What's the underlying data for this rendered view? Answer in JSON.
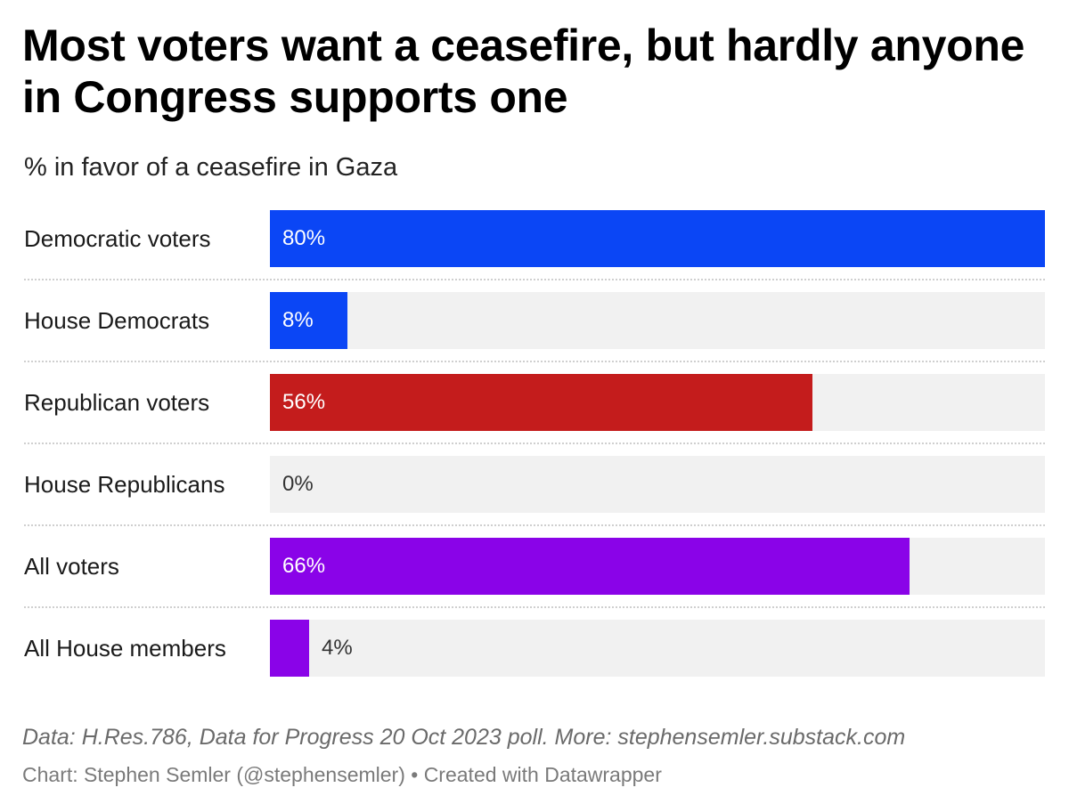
{
  "chart_data": {
    "type": "bar",
    "orientation": "horizontal",
    "title": "Most voters want a ceasefire, but hardly anyone in Congress supports one",
    "subtitle": "% in favor of a ceasefire in Gaza",
    "categories": [
      "Democratic voters",
      "House Democrats",
      "Republican voters",
      "House Republicans",
      "All voters",
      "All House members"
    ],
    "values": [
      80,
      8,
      56,
      0,
      66,
      4
    ],
    "value_labels": [
      "80%",
      "8%",
      "56%",
      "0%",
      "66%",
      "4%"
    ],
    "colors": [
      "#0b46f5",
      "#0b46f5",
      "#c41c1c",
      "#c41c1c",
      "#8a03e8",
      "#8a03e8"
    ],
    "xlim": [
      0,
      80
    ],
    "xlabel": "",
    "ylabel": "",
    "grid": false
  },
  "footer": {
    "source": "Data: H.Res.786, Data for Progress 20 Oct 2023 poll. More: stephensemler.substack.com",
    "credit": "Chart: Stephen Semler (@stephensemler) • Created with Datawrapper"
  },
  "colors": {
    "track": "#f1f1f1",
    "label_inside": "#ffffff",
    "label_outside": "#333333"
  }
}
